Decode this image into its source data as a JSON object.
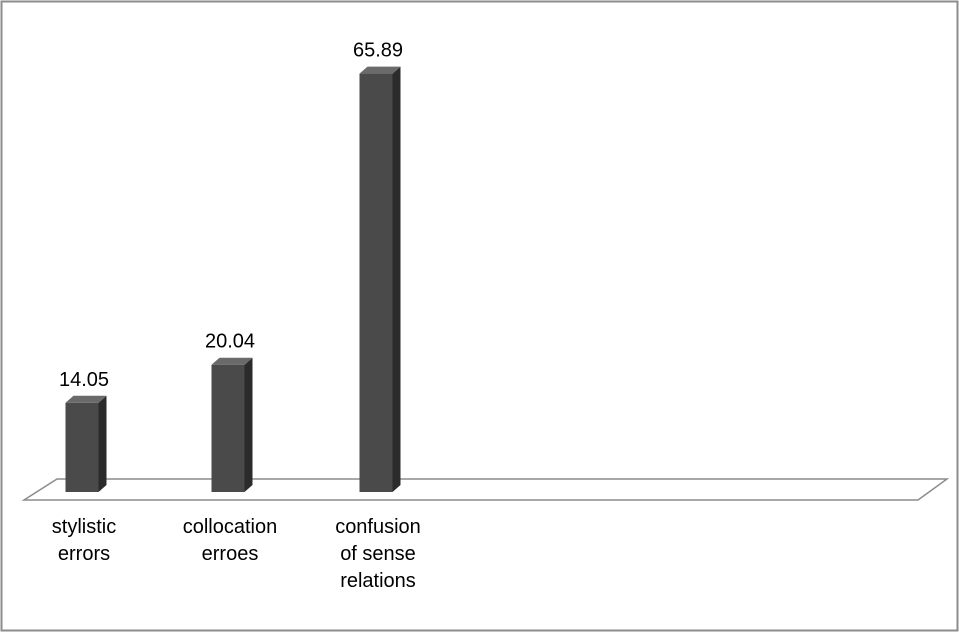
{
  "chart_data": {
    "type": "bar",
    "style": "3d-column",
    "categories": [
      [
        "stylistic",
        "errors"
      ],
      [
        "collocation",
        "erroes"
      ],
      [
        "confusion",
        "of sense",
        "relations"
      ]
    ],
    "values": [
      14.05,
      20.04,
      65.89
    ],
    "value_labels": [
      "14.05",
      "20.04",
      "65.89"
    ],
    "title": "",
    "xlabel": "",
    "ylabel": "",
    "ylim": [
      0,
      70
    ],
    "grid": false,
    "legend": "none",
    "colors": {
      "bar_front": "#4a4a4a",
      "bar_side": "#2b2b2b",
      "bar_top": "#6a6a6a",
      "floor_stroke": "#8c8c8c",
      "frame_stroke": "#8c8c8c",
      "text": "#000000"
    }
  }
}
